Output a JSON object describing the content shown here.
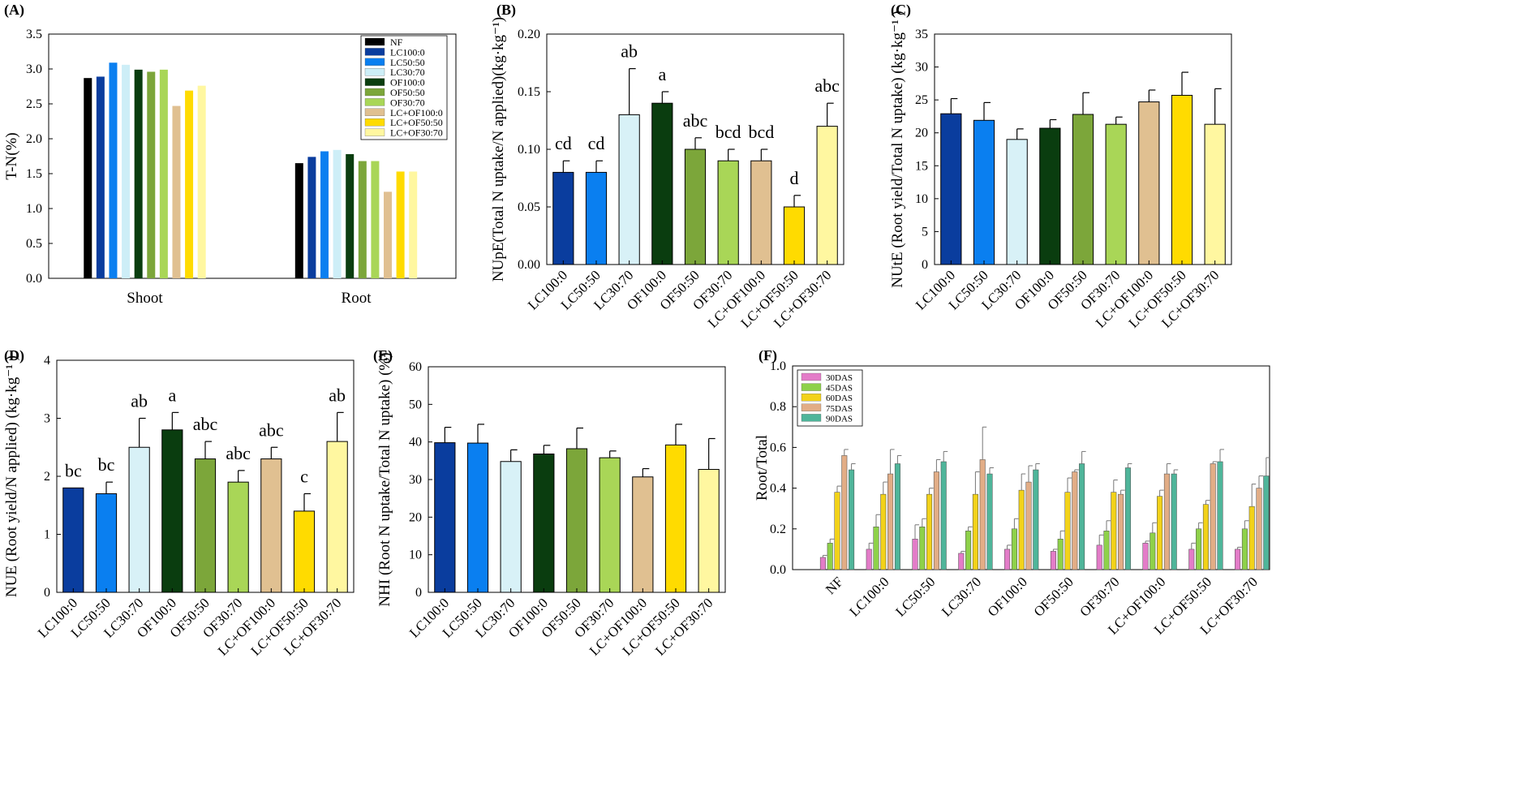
{
  "figure": {
    "bar_colors": {
      "NF": "#000000",
      "LC100:0": "#0a3d9e",
      "LC50:50": "#0a7ff0",
      "LC30:70": "#d8f1f7",
      "OF100:0": "#0a3d0f",
      "OF50:50": "#7ca63a",
      "OF30:70": "#a9d657",
      "LC+OF100:0": "#e0c091",
      "LC+OF50:50": "#ffdb00",
      "LC+OF30:70": "#fff7a0"
    }
  },
  "chart_data": [
    {
      "panel": "(A)",
      "type": "bar",
      "ylabel": "T-N(%)",
      "ylim": [
        0,
        3.5
      ],
      "yticks": [
        "0.0",
        "0.5",
        "1.0",
        "1.5",
        "2.0",
        "2.5",
        "3.0",
        "3.5"
      ],
      "categories": [
        "Shoot",
        "Root"
      ],
      "legend": [
        "NF",
        "LC100:0",
        "LC50:50",
        "LC30:70",
        "OF100:0",
        "OF50:50",
        "OF30:70",
        "LC+OF100:0",
        "LC+OF50:50",
        "LC+OF30:70"
      ],
      "legend_colors": [
        "#000000",
        "#0a3d9e",
        "#0a7ff0",
        "#cdeef7",
        "#0a3d0f",
        "#7ca63a",
        "#a9d657",
        "#e0c091",
        "#ffdb00",
        "#fff7a0"
      ],
      "legend_position": "top-right",
      "series": [
        {
          "name": "NF",
          "values": [
            2.87,
            1.65
          ]
        },
        {
          "name": "LC100:0",
          "values": [
            2.89,
            1.74
          ]
        },
        {
          "name": "LC50:50",
          "values": [
            3.09,
            1.82
          ]
        },
        {
          "name": "LC30:70",
          "values": [
            3.06,
            1.84
          ]
        },
        {
          "name": "OF100:0",
          "values": [
            2.99,
            1.78
          ]
        },
        {
          "name": "OF50:50",
          "values": [
            2.96,
            1.68
          ]
        },
        {
          "name": "OF30:70",
          "values": [
            2.99,
            1.68
          ]
        },
        {
          "name": "LC+OF100:0",
          "values": [
            2.47,
            1.24
          ]
        },
        {
          "name": "LC+OF50:50",
          "values": [
            2.69,
            1.53
          ]
        },
        {
          "name": "LC+OF30:70",
          "values": [
            2.76,
            1.53
          ]
        }
      ]
    },
    {
      "panel": "(B)",
      "type": "bar",
      "ylabel": "NUpE(Total N uptake/N applied)(kg·kg⁻¹)",
      "ylim": [
        0,
        0.2
      ],
      "yticks": [
        "0.00",
        "0.05",
        "0.10",
        "0.15",
        "0.20"
      ],
      "categories": [
        "LC100:0",
        "LC50:50",
        "LC30:70",
        "OF100:0",
        "OF50:50",
        "OF30:70",
        "LC+OF100:0",
        "LC+OF50:50",
        "LC+OF30:70"
      ],
      "values": [
        0.08,
        0.08,
        0.13,
        0.14,
        0.1,
        0.09,
        0.09,
        0.05,
        0.12
      ],
      "errors": [
        0.01,
        0.01,
        0.04,
        0.01,
        0.01,
        0.01,
        0.01,
        0.01,
        0.02
      ],
      "letters": [
        "cd",
        "cd",
        "ab",
        "a",
        "abc",
        "bcd",
        "bcd",
        "d",
        "abc"
      ]
    },
    {
      "panel": "(C)",
      "type": "bar",
      "ylabel": "NUtE (Root yield/Total N uptake) (kg·kg⁻¹ )",
      "ylim": [
        0,
        35
      ],
      "yticks": [
        "0",
        "5",
        "10",
        "15",
        "20",
        "25",
        "30",
        "35"
      ],
      "categories": [
        "LC100:0",
        "LC50:50",
        "LC30:70",
        "OF100:0",
        "OF50:50",
        "OF30:70",
        "LC+OF100:0",
        "LC+OF50:50",
        "LC+OF30:70"
      ],
      "values": [
        22.9,
        21.9,
        19.0,
        20.7,
        22.8,
        21.3,
        24.7,
        25.7,
        21.3
      ],
      "errors": [
        2.3,
        2.7,
        1.6,
        1.3,
        3.3,
        1.1,
        1.8,
        3.5,
        5.4
      ],
      "letters": []
    },
    {
      "panel": "(D)",
      "type": "bar",
      "ylabel": "NUE (Root yield/N applied) (kg·kg⁻¹ )",
      "ylim": [
        0,
        4
      ],
      "yticks": [
        "0",
        "1",
        "2",
        "3",
        "4"
      ],
      "categories": [
        "LC100:0",
        "LC50:50",
        "LC30:70",
        "OF100:0",
        "OF50:50",
        "OF30:70",
        "LC+OF100:0",
        "LC+OF50:50",
        "LC+OF30:70"
      ],
      "values": [
        1.8,
        1.7,
        2.5,
        2.8,
        2.3,
        1.9,
        2.3,
        1.4,
        2.6
      ],
      "errors": [
        0.0,
        0.2,
        0.5,
        0.3,
        0.3,
        0.2,
        0.2,
        0.3,
        0.5
      ],
      "letters": [
        "bc",
        "bc",
        "ab",
        "a",
        "abc",
        "abc",
        "abc",
        "c",
        "ab"
      ]
    },
    {
      "panel": "(E)",
      "type": "bar",
      "ylabel": "NHI (Root N uptake/Total N uptake) (%)",
      "ylim": [
        0,
        60
      ],
      "yticks": [
        "0",
        "10",
        "20",
        "30",
        "40",
        "50",
        "60"
      ],
      "categories": [
        "LC100:0",
        "LC50:50",
        "LC30:70",
        "OF100:0",
        "OF50:50",
        "OF30:70",
        "LC+OF100:0",
        "LC+OF50:50",
        "LC+OF30:70"
      ],
      "values": [
        39.8,
        39.7,
        34.8,
        36.8,
        38.2,
        35.8,
        30.7,
        39.2,
        32.7
      ],
      "errors": [
        4.1,
        5.0,
        3.1,
        2.3,
        5.5,
        1.8,
        2.2,
        5.5,
        8.2
      ],
      "letters": []
    },
    {
      "panel": "(F)",
      "type": "bar",
      "ylabel": "Root/Total",
      "ylim": [
        0,
        1.0
      ],
      "yticks": [
        "0.0",
        "0.2",
        "0.4",
        "0.6",
        "0.8",
        "1.0"
      ],
      "categories": [
        "NF",
        "LC100:0",
        "LC50:50",
        "LC30:70",
        "OF100:0",
        "OF50:50",
        "OF30:70",
        "LC+OF100:0",
        "LC+OF50:50",
        "LC+OF30:70"
      ],
      "legend": [
        "30DAS",
        "45DAS",
        "60DAS",
        "75DAS",
        "90DAS"
      ],
      "legend_colors": [
        "#e37cc8",
        "#8ed14a",
        "#f2d21a",
        "#e2ad86",
        "#4fb59a"
      ],
      "legend_position": "top-left",
      "series": [
        {
          "name": "30DAS",
          "values": [
            0.06,
            0.1,
            0.15,
            0.08,
            0.1,
            0.09,
            0.12,
            0.13,
            0.1,
            0.1
          ],
          "errors": [
            0.01,
            0.03,
            0.07,
            0.01,
            0.02,
            0.01,
            0.05,
            0.01,
            0.03,
            0.01
          ]
        },
        {
          "name": "45DAS",
          "values": [
            0.13,
            0.21,
            0.21,
            0.19,
            0.2,
            0.15,
            0.19,
            0.18,
            0.2,
            0.2
          ],
          "errors": [
            0.02,
            0.06,
            0.04,
            0.02,
            0.05,
            0.04,
            0.05,
            0.05,
            0.03,
            0.04
          ]
        },
        {
          "name": "60DAS",
          "values": [
            0.38,
            0.37,
            0.37,
            0.37,
            0.39,
            0.38,
            0.38,
            0.36,
            0.32,
            0.31
          ],
          "errors": [
            0.03,
            0.06,
            0.03,
            0.11,
            0.08,
            0.07,
            0.06,
            0.03,
            0.02,
            0.11
          ]
        },
        {
          "name": "75DAS",
          "values": [
            0.56,
            0.47,
            0.48,
            0.54,
            0.43,
            0.48,
            0.37,
            0.47,
            0.52,
            0.4
          ],
          "errors": [
            0.03,
            0.12,
            0.06,
            0.16,
            0.08,
            0.01,
            0.02,
            0.05,
            0.01,
            0.06
          ]
        },
        {
          "name": "90DAS",
          "values": [
            0.49,
            0.52,
            0.53,
            0.47,
            0.49,
            0.52,
            0.5,
            0.47,
            0.53,
            0.46
          ],
          "errors": [
            0.03,
            0.04,
            0.05,
            0.03,
            0.03,
            0.06,
            0.02,
            0.02,
            0.06,
            0.09
          ]
        }
      ]
    }
  ]
}
